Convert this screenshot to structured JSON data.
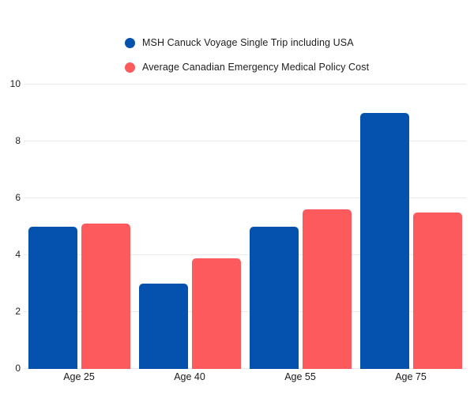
{
  "chart_data": {
    "type": "bar",
    "title": "",
    "categories": [
      "Age 25",
      "Age 40",
      "Age 55",
      "Age 75"
    ],
    "series": [
      {
        "name": "MSH Canuck Voyage Single Trip including USA",
        "color": "#0551ae",
        "values": [
          5.0,
          3.0,
          5.0,
          9.0
        ]
      },
      {
        "name": "Average Canadian Emergency Medical Policy Cost",
        "color": "#fc5a5c",
        "values": [
          5.1,
          3.9,
          5.6,
          5.5
        ]
      }
    ],
    "ylim": [
      0,
      10
    ],
    "yticks": [
      0,
      2,
      4,
      6,
      8,
      10
    ],
    "grid": true,
    "legend_position": "top-left-of-center",
    "xlabel": "",
    "ylabel": ""
  },
  "colors": {
    "background": "#ffffff",
    "gridline": "#eaeaea",
    "axis_text": "#222222",
    "legend_text": "#1d1d1d"
  }
}
